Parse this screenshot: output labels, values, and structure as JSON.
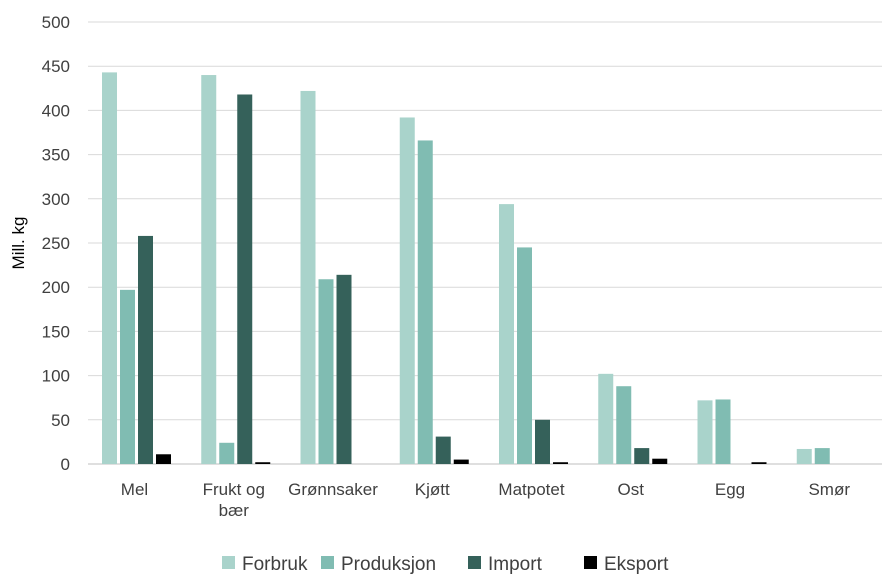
{
  "chart_data": {
    "type": "bar",
    "ylabel": "Mill. kg",
    "xlabel": "",
    "ylim": [
      0,
      500
    ],
    "yticks": [
      0,
      50,
      100,
      150,
      200,
      250,
      300,
      350,
      400,
      450,
      500
    ],
    "categories": [
      [
        "Mel"
      ],
      [
        "Frukt og",
        "bær"
      ],
      [
        "Grønnsaker"
      ],
      [
        "Kjøtt"
      ],
      [
        "Matpotet"
      ],
      [
        "Ost"
      ],
      [
        "Egg"
      ],
      [
        "Smør"
      ]
    ],
    "series": [
      {
        "name": "Forbruk",
        "color": "#a9d3cb",
        "values": [
          443,
          440,
          422,
          392,
          294,
          102,
          72,
          17
        ]
      },
      {
        "name": "Produksjon",
        "color": "#80bcb2",
        "values": [
          197,
          24,
          209,
          366,
          245,
          88,
          73,
          18
        ]
      },
      {
        "name": "Import",
        "color": "#35615a",
        "values": [
          258,
          418,
          214,
          31,
          50,
          18,
          0,
          0
        ]
      },
      {
        "name": "Eksport",
        "color": "#000000",
        "values": [
          11,
          2,
          0,
          5,
          2,
          6,
          2,
          0
        ]
      }
    ],
    "grid": true,
    "legend_position": "bottom"
  }
}
